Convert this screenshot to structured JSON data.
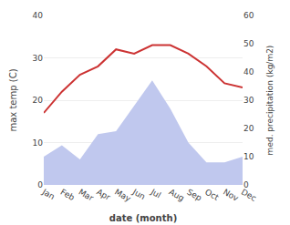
{
  "chart_data": {
    "type": "line",
    "xlabel": "date (month)",
    "ylabel": "max temp (C)",
    "y2label": "med. precipitation (kg/m2)",
    "categories": [
      "Jan",
      "Feb",
      "Mar",
      "Apr",
      "May",
      "Jun",
      "Jul",
      "Aug",
      "Sep",
      "Oct",
      "Nov",
      "Dec"
    ],
    "series": [
      {
        "type": "area",
        "color": "#c0c8ee",
        "axis": "y2",
        "values": [
          10,
          14,
          9,
          18,
          19,
          28,
          37,
          27,
          15,
          8,
          8,
          10
        ]
      },
      {
        "type": "line",
        "color": "#cc3333",
        "values": [
          17,
          22,
          26,
          28,
          32,
          31,
          33,
          33,
          31,
          28,
          24,
          23
        ]
      }
    ],
    "ylim": [
      0,
      40
    ],
    "yticks": [
      0,
      10,
      20,
      30,
      40
    ],
    "y2lim": [
      0,
      60
    ],
    "y2ticks": [
      0,
      10,
      20,
      30,
      40,
      50,
      60
    ],
    "grid": true
  }
}
